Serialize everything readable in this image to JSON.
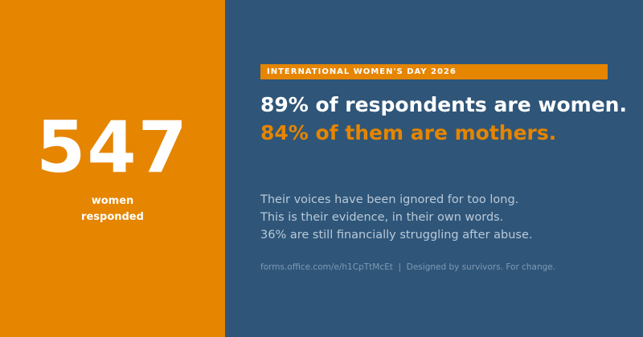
{
  "stat": {
    "number": "547",
    "caption_line1": "women",
    "caption_line2": "responded"
  },
  "banner": {
    "label": "INTERNATIONAL WOMEN'S DAY 2026"
  },
  "headline": {
    "line1": "89% of respondents are women.",
    "line2": "84% of them are mothers."
  },
  "body": {
    "line1": "Their voices have been ignored for too long.",
    "line2": "This is their evidence, in their own words.",
    "line3": "36% are still financially struggling after abuse."
  },
  "footer": {
    "link": "forms.office.com/e/h1CpTtMcEt",
    "separator": "|",
    "tagline": "Designed by survivors. For change."
  },
  "colors": {
    "accent_orange": "#E58500",
    "panel_blue": "#2F5679",
    "body_text": "#B9C9D9",
    "footer_text": "#7F99B3"
  }
}
